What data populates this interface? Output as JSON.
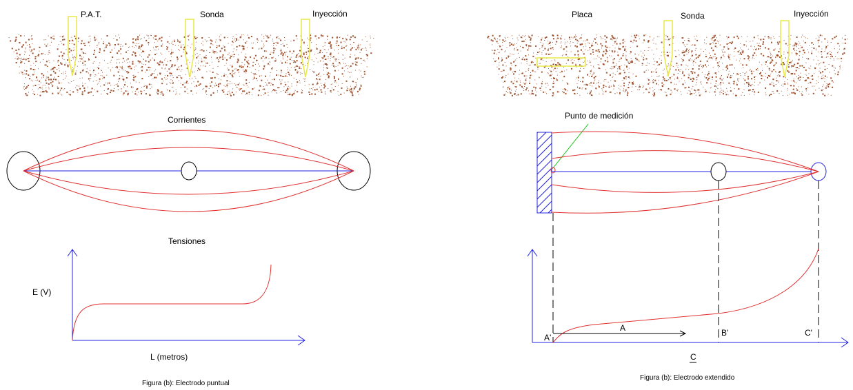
{
  "colors": {
    "soil": "#a0522d",
    "electrode": "#e8e84a",
    "current_lines": "#e03030",
    "axis": "#2020e0",
    "pointer": "#10c010"
  },
  "left": {
    "electrodes": [
      "P.A.T.",
      "Sonda",
      "Inyección"
    ],
    "currents_title": "Corrientes",
    "voltages_title": "Tensiones",
    "y_axis_label": "E (V)",
    "x_axis_label": "L (metros)",
    "caption": "Figura (b): Electrodo puntual"
  },
  "right": {
    "electrodes": [
      "Placa",
      "Sonda",
      "Inyección"
    ],
    "measure_point_label": "Punto de medición",
    "points": [
      "A'",
      "B'",
      "C'"
    ],
    "distance_label": "A",
    "axis_label": "C",
    "caption": "Figura (b): Electrodo extendido"
  }
}
